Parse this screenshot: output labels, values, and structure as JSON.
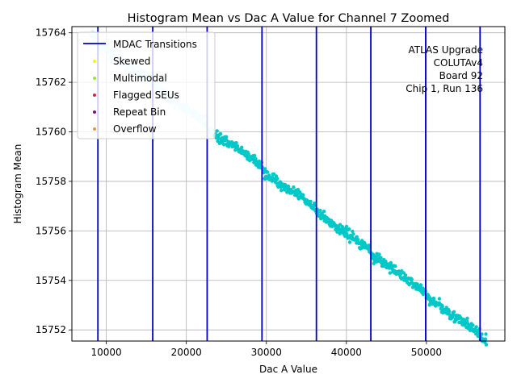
{
  "chart_data": {
    "type": "scatter",
    "title": "Histogram Mean vs Dac A Value for Channel 7 Zoomed",
    "xlabel": "Dac A Value",
    "ylabel": "Histogram Mean",
    "xlim": [
      5700,
      59800
    ],
    "ylim": [
      15751.55,
      15764.25
    ],
    "grid": true,
    "x_ticks": [
      10000,
      20000,
      30000,
      40000,
      50000
    ],
    "x_tick_labels": [
      "10000",
      "20000",
      "30000",
      "40000",
      "50000"
    ],
    "y_ticks": [
      15752,
      15754,
      15756,
      15758,
      15760,
      15762,
      15764
    ],
    "y_tick_labels": [
      "15752",
      "15754",
      "15756",
      "15758",
      "15760",
      "15762",
      "15764"
    ],
    "mdac_transitions": [
      8950,
      15800,
      22600,
      29450,
      36250,
      43050,
      49900,
      56700
    ],
    "series": [
      {
        "name": "MDAC Transitions",
        "color": "#0000cc",
        "kind": "vline"
      },
      {
        "name": "Data",
        "color": "#00c8c8",
        "color_early": "#cff5f8",
        "x_range": [
          8000,
          57500
        ],
        "y_start": 15763.2,
        "y_end": 15752.2,
        "kind": "scatter"
      }
    ],
    "legend": {
      "position": "top-left",
      "entries": [
        {
          "label": "MDAC Transitions",
          "color": "#0000cc",
          "marker": "line"
        },
        {
          "label": "Skewed",
          "color": "#f2f21f",
          "marker": "dot"
        },
        {
          "label": "Multimodal",
          "color": "#99e640",
          "marker": "dot"
        },
        {
          "label": "Flagged SEUs",
          "color": "#c83232",
          "marker": "dot"
        },
        {
          "label": "Repeat Bin",
          "color": "#801080",
          "marker": "dot"
        },
        {
          "label": "Overflow",
          "color": "#e6963c",
          "marker": "dot"
        }
      ]
    },
    "annotation": [
      "ATLAS Upgrade",
      "COLUTAv4",
      "Board 92",
      "Chip 1, Run 136"
    ]
  }
}
